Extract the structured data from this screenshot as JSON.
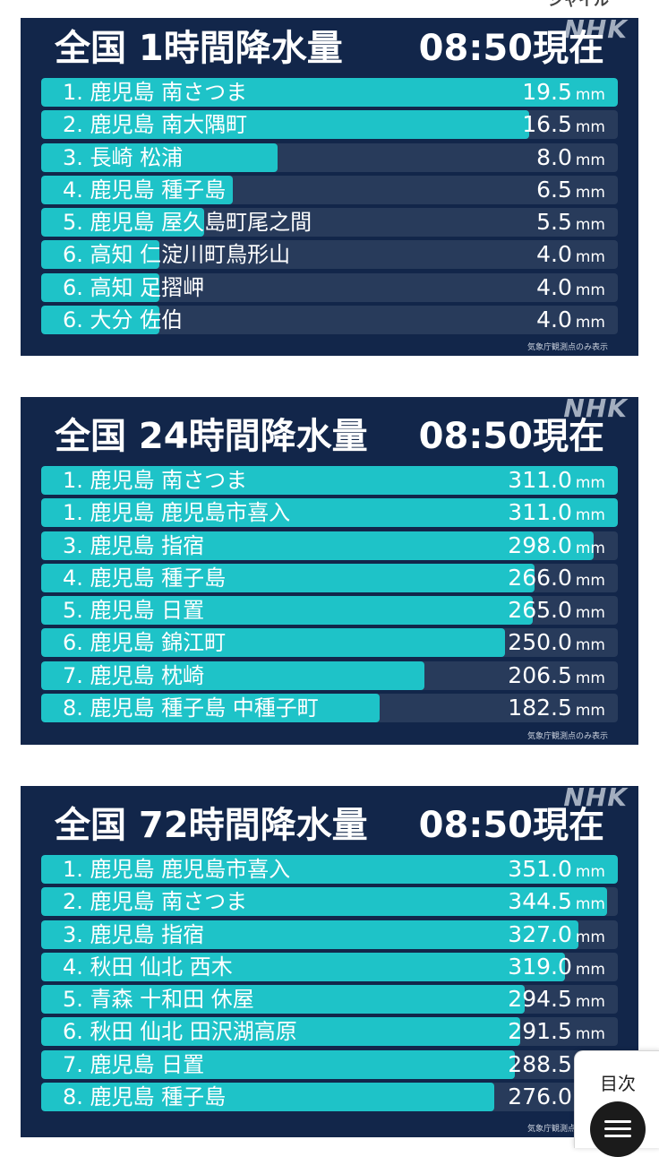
{
  "top_fragment": "シャイル",
  "logo_text": "NHK",
  "accent_color": "#1ec3c8",
  "panel_color": "#12264a",
  "cards": [
    {
      "title_left": "全国 1時間降水量",
      "title_right": "08:50現在",
      "note": "気象庁観測点のみ表示",
      "rows": [
        {
          "label": "1. 鹿児島 南さつま",
          "value": "19.5",
          "unit": "mm",
          "fill": 1.0
        },
        {
          "label": "2. 鹿児島 南大隅町",
          "value": "16.5",
          "unit": "mm",
          "fill": 0.846
        },
        {
          "label": "3. 長崎 松浦",
          "value": "8.0",
          "unit": "mm",
          "fill": 0.41
        },
        {
          "label": "4. 鹿児島 種子島",
          "value": "6.5",
          "unit": "mm",
          "fill": 0.333
        },
        {
          "label": "5. 鹿児島 屋久島町尾之間",
          "value": "5.5",
          "unit": "mm",
          "fill": 0.282
        },
        {
          "label": "6. 高知 仁淀川町鳥形山",
          "value": "4.0",
          "unit": "mm",
          "fill": 0.205
        },
        {
          "label": "6. 高知 足摺岬",
          "value": "4.0",
          "unit": "mm",
          "fill": 0.205
        },
        {
          "label": "6. 大分 佐伯",
          "value": "4.0",
          "unit": "mm",
          "fill": 0.205
        }
      ]
    },
    {
      "title_left": "全国 24時間降水量",
      "title_right": "08:50現在",
      "note": "気象庁観測点のみ表示",
      "rows": [
        {
          "label": "1. 鹿児島 南さつま",
          "value": "311.0",
          "unit": "mm",
          "fill": 1.0
        },
        {
          "label": "1. 鹿児島 鹿児島市喜入",
          "value": "311.0",
          "unit": "mm",
          "fill": 1.0
        },
        {
          "label": "3. 鹿児島 指宿",
          "value": "298.0",
          "unit": "mm",
          "fill": 0.958
        },
        {
          "label": "4. 鹿児島 種子島",
          "value": "266.0",
          "unit": "mm",
          "fill": 0.855
        },
        {
          "label": "5. 鹿児島 日置",
          "value": "265.0",
          "unit": "mm",
          "fill": 0.852
        },
        {
          "label": "6. 鹿児島 錦江町",
          "value": "250.0",
          "unit": "mm",
          "fill": 0.804
        },
        {
          "label": "7. 鹿児島 枕崎",
          "value": "206.5",
          "unit": "mm",
          "fill": 0.664
        },
        {
          "label": "8. 鹿児島 種子島 中種子町",
          "value": "182.5",
          "unit": "mm",
          "fill": 0.587
        }
      ]
    },
    {
      "title_left": "全国 72時間降水量",
      "title_right": "08:50現在",
      "note": "気象庁観測点のみ表示",
      "rows": [
        {
          "label": "1. 鹿児島 鹿児島市喜入",
          "value": "351.0",
          "unit": "mm",
          "fill": 1.0
        },
        {
          "label": "2. 鹿児島 南さつま",
          "value": "344.5",
          "unit": "mm",
          "fill": 0.981
        },
        {
          "label": "3. 鹿児島 指宿",
          "value": "327.0",
          "unit": "mm",
          "fill": 0.932
        },
        {
          "label": "4. 秋田 仙北 西木",
          "value": "319.0",
          "unit": "mm",
          "fill": 0.909
        },
        {
          "label": "5. 青森 十和田 休屋",
          "value": "294.5",
          "unit": "mm",
          "fill": 0.839
        },
        {
          "label": "6. 秋田 仙北 田沢湖高原",
          "value": "291.5",
          "unit": "mm",
          "fill": 0.83
        },
        {
          "label": "7. 鹿児島 日置",
          "value": "288.5",
          "unit": "mm",
          "fill": 0.822
        },
        {
          "label": "8. 鹿児島 種子島",
          "value": "276.0",
          "unit": "mm",
          "fill": 0.786
        }
      ]
    }
  ],
  "toc_button": {
    "label": "目次",
    "icon": "list-icon"
  }
}
